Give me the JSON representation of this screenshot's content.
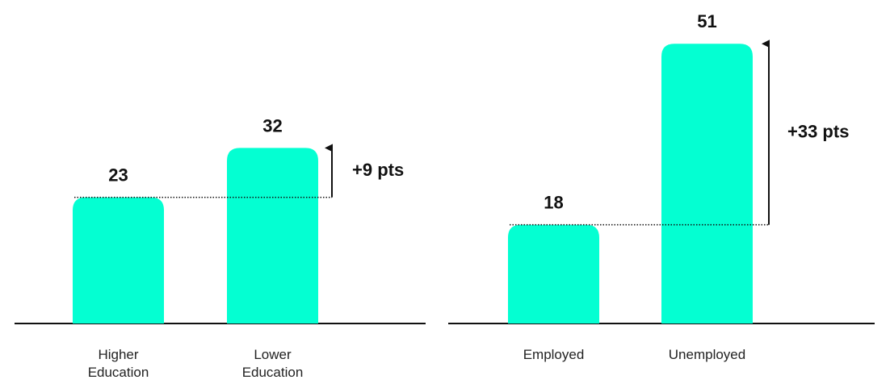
{
  "chart_data": [
    {
      "type": "bar",
      "categories": [
        "Higher Education",
        "Lower Education"
      ],
      "category_lines": [
        [
          "Higher",
          "Education"
        ],
        [
          "Lower",
          "Education"
        ]
      ],
      "values": [
        23,
        32
      ],
      "difference_label": "+9 pts",
      "bar_color": "#04FFD2"
    },
    {
      "type": "bar",
      "categories": [
        "Employed",
        "Unemployed"
      ],
      "category_lines": [
        [
          "Employed"
        ],
        [
          "Unemployed"
        ]
      ],
      "values": [
        18,
        51
      ],
      "difference_label": "+33 pts",
      "bar_color": "#04FFD2"
    }
  ]
}
